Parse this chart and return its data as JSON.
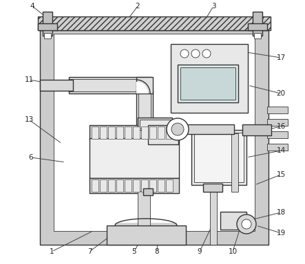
{
  "bg_color": "#ffffff",
  "lc": "#333333",
  "gray_wall": "#c8c8c8",
  "gray_inner": "#e0e0e0",
  "gray_med": "#b8b8b8",
  "white": "#ffffff",
  "gray_light": "#f0f0f0",
  "gray_panel": "#d8d8d8"
}
